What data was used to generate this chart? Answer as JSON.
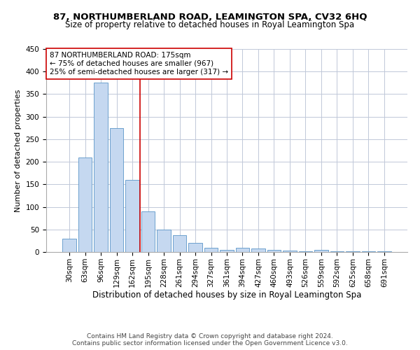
{
  "title": "87, NORTHUMBERLAND ROAD, LEAMINGTON SPA, CV32 6HQ",
  "subtitle": "Size of property relative to detached houses in Royal Leamington Spa",
  "xlabel": "Distribution of detached houses by size in Royal Leamington Spa",
  "ylabel": "Number of detached properties",
  "footer_line1": "Contains HM Land Registry data © Crown copyright and database right 2024.",
  "footer_line2": "Contains public sector information licensed under the Open Government Licence v3.0.",
  "categories": [
    "30sqm",
    "63sqm",
    "96sqm",
    "129sqm",
    "162sqm",
    "195sqm",
    "228sqm",
    "261sqm",
    "294sqm",
    "327sqm",
    "361sqm",
    "394sqm",
    "427sqm",
    "460sqm",
    "493sqm",
    "526sqm",
    "559sqm",
    "592sqm",
    "625sqm",
    "658sqm",
    "691sqm"
  ],
  "values": [
    30,
    210,
    375,
    275,
    160,
    90,
    50,
    38,
    20,
    10,
    5,
    10,
    8,
    5,
    3,
    1,
    5,
    1,
    2,
    1,
    1
  ],
  "bar_color": "#c5d8f0",
  "bar_edge_color": "#5a96c8",
  "grid_color": "#c0c8d8",
  "red_line_x": 4.5,
  "red_line_color": "#cc0000",
  "annotation_text": "87 NORTHUMBERLAND ROAD: 175sqm\n← 75% of detached houses are smaller (967)\n25% of semi-detached houses are larger (317) →",
  "annotation_box_color": "#ffffff",
  "annotation_box_edge": "#cc0000",
  "ylim": [
    0,
    450
  ],
  "yticks": [
    0,
    50,
    100,
    150,
    200,
    250,
    300,
    350,
    400,
    450
  ],
  "title_fontsize": 9.5,
  "subtitle_fontsize": 8.5,
  "xlabel_fontsize": 8.5,
  "ylabel_fontsize": 8,
  "tick_fontsize": 7.5,
  "annotation_fontsize": 7.5,
  "footer_fontsize": 6.5
}
